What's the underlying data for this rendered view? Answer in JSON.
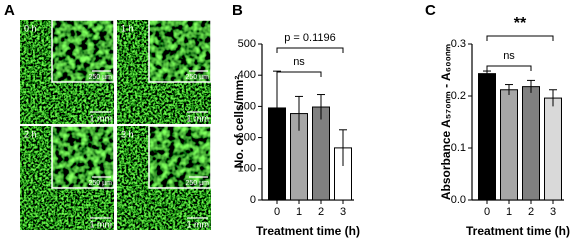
{
  "image_panel": {
    "label": "A",
    "images": [
      {
        "time": "0 h",
        "inset_scale": "250 µm",
        "scale": "1 mm"
      },
      {
        "time": "1 h",
        "inset_scale": "250 µm",
        "scale": "1 mm"
      },
      {
        "time": "2 h",
        "inset_scale": "250 µm",
        "scale": "1 mm"
      },
      {
        "time": "3 h",
        "inset_scale": "250 µm",
        "scale": "1 mm"
      }
    ]
  },
  "chart_data": [
    {
      "type": "bar",
      "panel_label": "B",
      "xlabel": "Treatment time (h)",
      "ylabel": "No. of cells/mm²",
      "categories": [
        "0",
        "1",
        "2",
        "3"
      ],
      "values": [
        295,
        277,
        298,
        167
      ],
      "errors": [
        118,
        55,
        40,
        58
      ],
      "colors": [
        "#000000",
        "#a6a6a6",
        "#808080",
        "#ffffff"
      ],
      "ylim": [
        0,
        500
      ],
      "yticks": [
        0,
        100,
        200,
        300,
        400,
        500
      ],
      "annotations": [
        "p = 0.1196",
        "ns"
      ]
    },
    {
      "type": "bar",
      "panel_label": "C",
      "xlabel": "Treatment time (h)",
      "ylabel": "Absorbance A₅₇₀ₙₘ - A₆₀₀ₙₘ",
      "categories": [
        "0",
        "1",
        "2",
        "3"
      ],
      "values": [
        0.243,
        0.212,
        0.218,
        0.196
      ],
      "errors": [
        0.005,
        0.01,
        0.012,
        0.016
      ],
      "colors": [
        "#000000",
        "#a6a6a6",
        "#808080",
        "#d9d9d9"
      ],
      "ylim": [
        0,
        0.3
      ],
      "yticks": [
        {
          "value": 0,
          "label": "0.0"
        },
        0.1,
        0.2,
        0.3
      ],
      "annotations": [
        "**",
        "ns"
      ]
    }
  ]
}
